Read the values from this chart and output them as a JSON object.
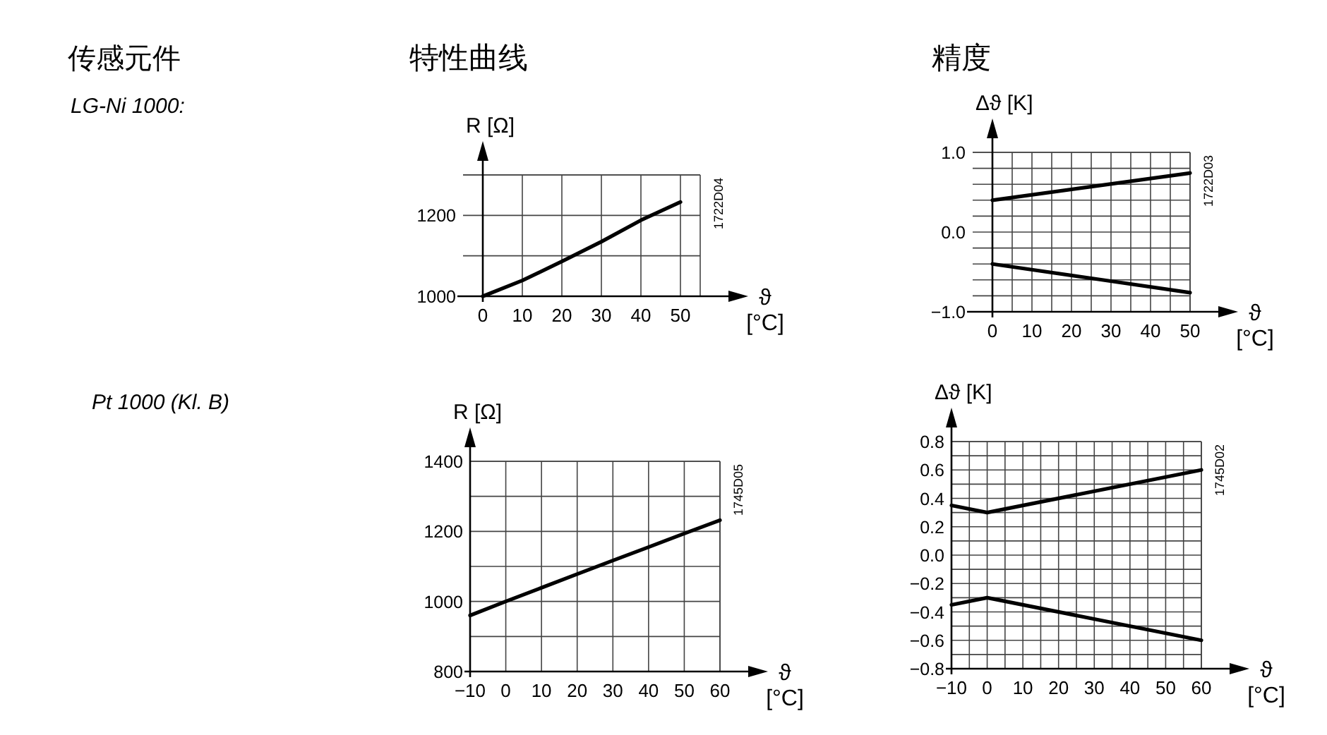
{
  "chart_data": [
    {
      "type": "line",
      "title": "特性曲线",
      "ylabel": "R [Ω]",
      "xlabel": "ϑ [°C]",
      "annotations": [
        "传感元件",
        "LG-Ni 1000:",
        "1722D04"
      ],
      "grid": true,
      "xlim": [
        -5,
        55
      ],
      "ylim": [
        1000,
        1300
      ],
      "xticks": [
        0,
        10,
        20,
        30,
        40,
        50
      ],
      "yticks": [
        1000,
        {
          "value": 1100,
          "label": null
        },
        1200,
        {
          "value": 1300,
          "label": null
        }
      ],
      "series": [
        {
          "color": "#000000",
          "x": [
            0,
            10,
            20,
            30,
            40,
            50
          ],
          "values": [
            1000,
            1039,
            1086,
            1135,
            1188,
            1233
          ]
        }
      ]
    },
    {
      "type": "line",
      "title": "精度",
      "ylabel": "Δϑ [K]",
      "xlabel": "ϑ [°C]",
      "annotations": [
        "1722D03"
      ],
      "grid": true,
      "xlim": [
        -5,
        50
      ],
      "ylim": [
        -1,
        1
      ],
      "xticks": [
        0,
        {
          "value": 5,
          "label": null
        },
        10,
        {
          "value": 15,
          "label": null
        },
        20,
        {
          "value": 25,
          "label": null
        },
        30,
        {
          "value": 35,
          "label": null
        },
        40,
        {
          "value": 45,
          "label": null
        },
        50
      ],
      "yticks": [
        {
          "value": -1,
          "label": "−1.0"
        },
        {
          "value": -0.8,
          "label": null
        },
        {
          "value": -0.6,
          "label": null
        },
        {
          "value": -0.4,
          "label": null
        },
        {
          "value": -0.2,
          "label": null
        },
        {
          "value": 0,
          "label": "0.0"
        },
        {
          "value": 0.2,
          "label": null
        },
        {
          "value": 0.4,
          "label": null
        },
        {
          "value": 0.6,
          "label": null
        },
        {
          "value": 0.8,
          "label": null
        },
        {
          "value": 1,
          "label": "1.0"
        }
      ],
      "series": [
        {
          "color": "#000000",
          "x": [
            0,
            25,
            50
          ],
          "values": [
            0.4,
            0.57,
            0.74
          ]
        },
        {
          "color": "#000000",
          "x": [
            0,
            25,
            50
          ],
          "values": [
            -0.4,
            -0.58,
            -0.76
          ]
        }
      ]
    },
    {
      "type": "line",
      "ylabel": "R [Ω]",
      "xlabel": "ϑ [°C]",
      "annotations": [
        "Pt 1000 (Kl. B)",
        "1745D05"
      ],
      "grid": true,
      "xlim": [
        -10,
        60
      ],
      "ylim": [
        800,
        1400
      ],
      "xticks": [
        {
          "value": -10,
          "label": "−10"
        },
        0,
        10,
        20,
        30,
        40,
        50,
        60
      ],
      "yticks": [
        800,
        {
          "value": 900,
          "label": null
        },
        1000,
        {
          "value": 1100,
          "label": null
        },
        1200,
        {
          "value": 1300,
          "label": null
        },
        1400
      ],
      "series": [
        {
          "color": "#000000",
          "x": [
            -10,
            0,
            10,
            20,
            30,
            40,
            50,
            60
          ],
          "values": [
            960,
            1000,
            1039,
            1078,
            1117,
            1155,
            1194,
            1232
          ]
        }
      ]
    },
    {
      "type": "line",
      "ylabel": "Δϑ [K]",
      "xlabel": "ϑ [°C]",
      "annotations": [
        "1745D02"
      ],
      "grid": true,
      "xlim": [
        -10,
        60
      ],
      "ylim": [
        -0.8,
        0.8
      ],
      "xticks": [
        {
          "value": -10,
          "label": "−10"
        },
        {
          "value": -5,
          "label": null
        },
        0,
        {
          "value": 5,
          "label": null
        },
        10,
        {
          "value": 15,
          "label": null
        },
        20,
        {
          "value": 25,
          "label": null
        },
        30,
        {
          "value": 35,
          "label": null
        },
        40,
        {
          "value": 45,
          "label": null
        },
        50,
        {
          "value": 55,
          "label": null
        },
        60
      ],
      "yticks": [
        {
          "value": -0.8,
          "label": "−0.8"
        },
        {
          "value": -0.7,
          "label": null
        },
        {
          "value": -0.6,
          "label": "−0.6"
        },
        {
          "value": -0.5,
          "label": null
        },
        {
          "value": -0.4,
          "label": "−0.4"
        },
        {
          "value": -0.3,
          "label": null
        },
        {
          "value": -0.2,
          "label": "−0.2"
        },
        {
          "value": -0.1,
          "label": null
        },
        {
          "value": 0,
          "label": "0.0"
        },
        {
          "value": 0.1,
          "label": null
        },
        {
          "value": 0.2,
          "label": "0.2"
        },
        {
          "value": 0.3,
          "label": null
        },
        {
          "value": 0.4,
          "label": "0.4"
        },
        {
          "value": 0.5,
          "label": null
        },
        {
          "value": 0.6,
          "label": "0.6"
        },
        {
          "value": 0.7,
          "label": null
        },
        {
          "value": 0.8,
          "label": "0.8"
        }
      ],
      "series": [
        {
          "color": "#000000",
          "x": [
            -10,
            0,
            60
          ],
          "values": [
            0.35,
            0.3,
            0.6
          ]
        },
        {
          "color": "#000000",
          "x": [
            -10,
            0,
            60
          ],
          "values": [
            -0.35,
            -0.3,
            -0.6
          ]
        }
      ]
    }
  ]
}
